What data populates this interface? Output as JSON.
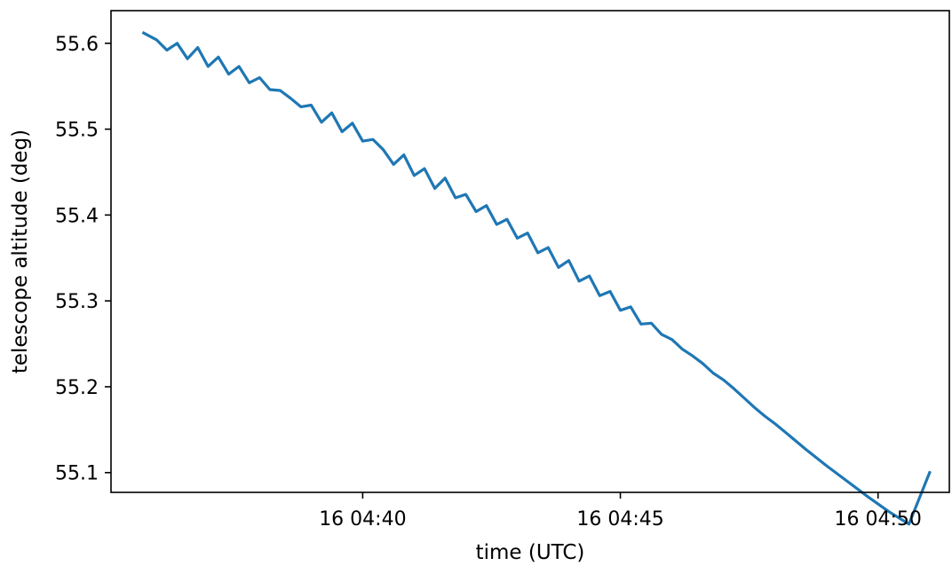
{
  "chart_data": {
    "type": "line",
    "xlabel": "time (UTC)",
    "ylabel": "telescope altitude (deg)",
    "x_tick_labels": [
      "16 04:40",
      "16 04:45",
      "16 04:50"
    ],
    "y_tick_labels": [
      "55.1",
      "55.2",
      "55.3",
      "55.4",
      "55.5",
      "55.6"
    ],
    "xlim": [
      "04:35:07",
      "04:51:23"
    ],
    "ylim": [
      55.077,
      55.638
    ],
    "grid": false,
    "series": [
      {
        "color": "#1f77b4",
        "x": [
          "04:35:45",
          "04:36:00",
          "04:36:12",
          "04:36:24",
          "04:36:36",
          "04:36:48",
          "04:37:00",
          "04:37:12",
          "04:37:24",
          "04:37:36",
          "04:37:48",
          "04:38:00",
          "04:38:12",
          "04:38:24",
          "04:38:36",
          "04:38:48",
          "04:39:00",
          "04:39:12",
          "04:39:24",
          "04:39:36",
          "04:39:48",
          "04:40:00",
          "04:40:12",
          "04:40:24",
          "04:40:36",
          "04:40:48",
          "04:41:00",
          "04:41:12",
          "04:41:24",
          "04:41:36",
          "04:41:48",
          "04:42:00",
          "04:42:12",
          "04:42:24",
          "04:42:36",
          "04:42:48",
          "04:43:00",
          "04:43:12",
          "04:43:24",
          "04:43:36",
          "04:43:48",
          "04:44:00",
          "04:44:12",
          "04:44:24",
          "04:44:36",
          "04:44:48",
          "04:45:00",
          "04:45:12",
          "04:45:24",
          "04:45:36",
          "04:45:48",
          "04:46:00",
          "04:46:12",
          "04:46:24",
          "04:46:36",
          "04:46:48",
          "04:47:00",
          "04:47:12",
          "04:47:24",
          "04:47:36",
          "04:47:48",
          "04:48:00",
          "04:48:12",
          "04:48:24",
          "04:48:36",
          "04:49:00",
          "04:49:24",
          "04:49:48",
          "04:50:12",
          "04:50:36",
          "04:51:00"
        ],
        "y": [
          55.612,
          55.604,
          55.592,
          55.6,
          55.582,
          55.595,
          55.573,
          55.584,
          55.564,
          55.573,
          55.554,
          55.56,
          55.546,
          55.545,
          55.536,
          55.526,
          55.528,
          55.508,
          55.519,
          55.497,
          55.507,
          55.486,
          55.488,
          55.476,
          55.459,
          55.47,
          55.446,
          55.454,
          55.431,
          55.443,
          55.42,
          55.424,
          55.404,
          55.411,
          55.389,
          55.395,
          55.373,
          55.379,
          55.356,
          55.362,
          55.339,
          55.347,
          55.323,
          55.329,
          55.306,
          55.311,
          55.289,
          55.293,
          55.273,
          55.274,
          55.261,
          55.255,
          55.244,
          55.236,
          55.227,
          55.216,
          55.208,
          55.198,
          55.187,
          55.176,
          55.166,
          55.157,
          55.147,
          55.137,
          55.127,
          55.108,
          55.09,
          55.072,
          55.055,
          55.04,
          55.1
        ]
      }
    ]
  }
}
